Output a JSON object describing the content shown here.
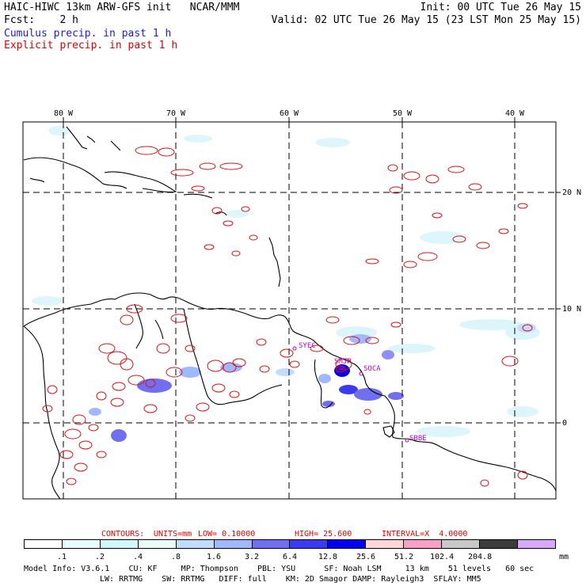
{
  "header": {
    "left1": "HAIC-HIWC 13km ARW-GFS init   NCAR/MMM",
    "left2": "Fcst:    2 h",
    "right1": "Init: 00 UTC Tue 26 May 15",
    "right2": "Valid: 02 UTC Tue 26 May 15 (23 LST Mon 25 May 15)",
    "cumulus": "Cumulus precip. in past 1 h",
    "explicit": "Explicit precip. in past 1 h"
  },
  "colors": {
    "cumulus_text": "#2020c8",
    "explicit_text": "#e00000",
    "contour": "#e01010",
    "coast": "#000000",
    "station": "#c000c0"
  },
  "map": {
    "lon_labels": [
      "80 W",
      "70 W",
      "60 W",
      "50 W",
      "40 W"
    ],
    "lat_labels": [
      "20 N",
      "10 N",
      "0"
    ],
    "stations": [
      "SYEC",
      "SMJP",
      "SOCA",
      "SBBE"
    ]
  },
  "contour_info": {
    "contours": "CONTOURS:",
    "units": "UNITS=mm",
    "low": "LOW= 0.10000",
    "high": "HIGH= 25.600",
    "interval": "INTERVAL=X  4.0000"
  },
  "colorbar": {
    "colors": [
      "#ffffff",
      "#e6fbff",
      "#d2f7fb",
      "#eafcf8",
      "#c2dcff",
      "#a0b8ff",
      "#6f6ff0",
      "#3a3aee",
      "#0000ee",
      "#ffd7d7",
      "#f9a0c6",
      "#c8c8c8",
      "#3c3c3c",
      "#d8a8ff"
    ],
    "labels": [
      ".1",
      ".2",
      ".4",
      ".8",
      "1.6",
      "3.2",
      "6.4",
      "12.8",
      "25.6",
      "51.2",
      "102.4",
      "204.8"
    ],
    "unit": "mm"
  },
  "model_info": {
    "line1": "Model Info: V3.6.1    CU: KF     MP: Thompson    PBL: YSU      SF: Noah LSM     13 km    51 levels   60 sec",
    "line2": "LW: RRTMG    SW: RRTMG   DIFF: full    KM: 2D Smagor DAMP: Rayleigh3  SFLAY: MM5"
  }
}
